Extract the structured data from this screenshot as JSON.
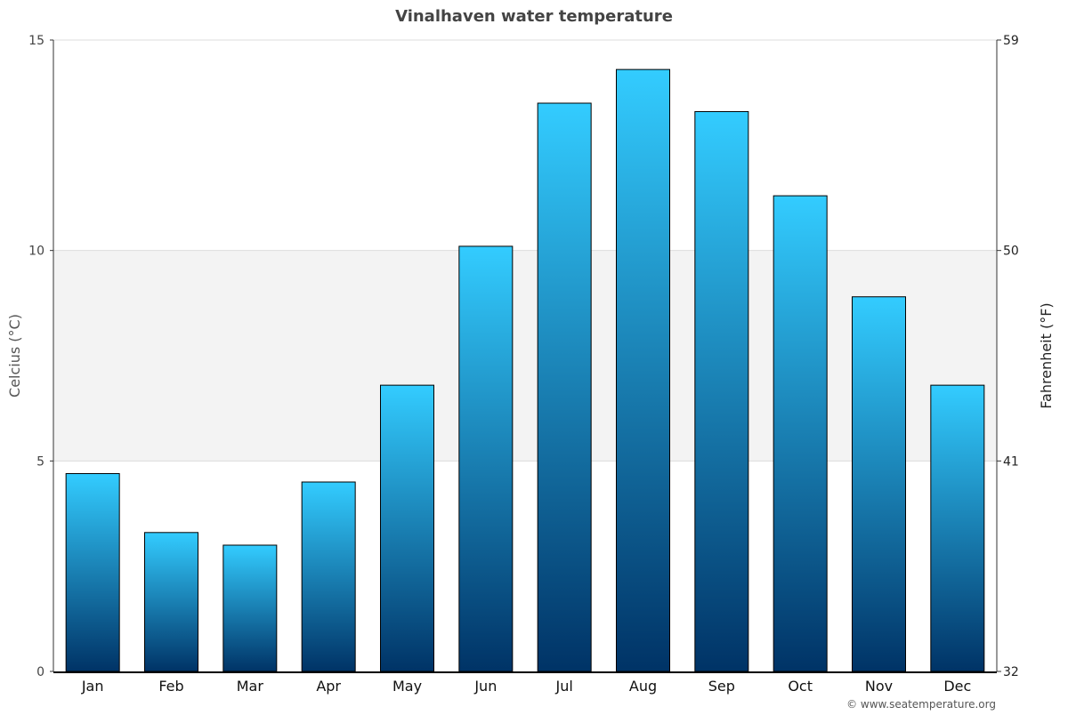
{
  "chart_data": {
    "type": "bar",
    "title": "Vinalhaven water temperature",
    "ylabel": "Celcius (°C)",
    "y2label": "Fahrenheit (°F)",
    "categories": [
      "Jan",
      "Feb",
      "Mar",
      "Apr",
      "May",
      "Jun",
      "Jul",
      "Aug",
      "Sep",
      "Oct",
      "Nov",
      "Dec"
    ],
    "values": [
      4.7,
      3.3,
      3.0,
      4.5,
      6.8,
      10.1,
      13.5,
      14.3,
      13.3,
      11.3,
      8.9,
      6.8
    ],
    "ylim": [
      0,
      15
    ],
    "yticks": [
      "0",
      "5",
      "10",
      "15"
    ],
    "y2ticks": [
      "32",
      "41",
      "50",
      "59"
    ],
    "grid": true,
    "shaded_band": [
      5,
      10
    ],
    "colors": {
      "bar_top": "#33ccff",
      "bar_bottom": "#003366",
      "band": "#f3f3f3",
      "title": "#444444"
    }
  },
  "footer": {
    "credit": "© www.seatemperature.org"
  }
}
